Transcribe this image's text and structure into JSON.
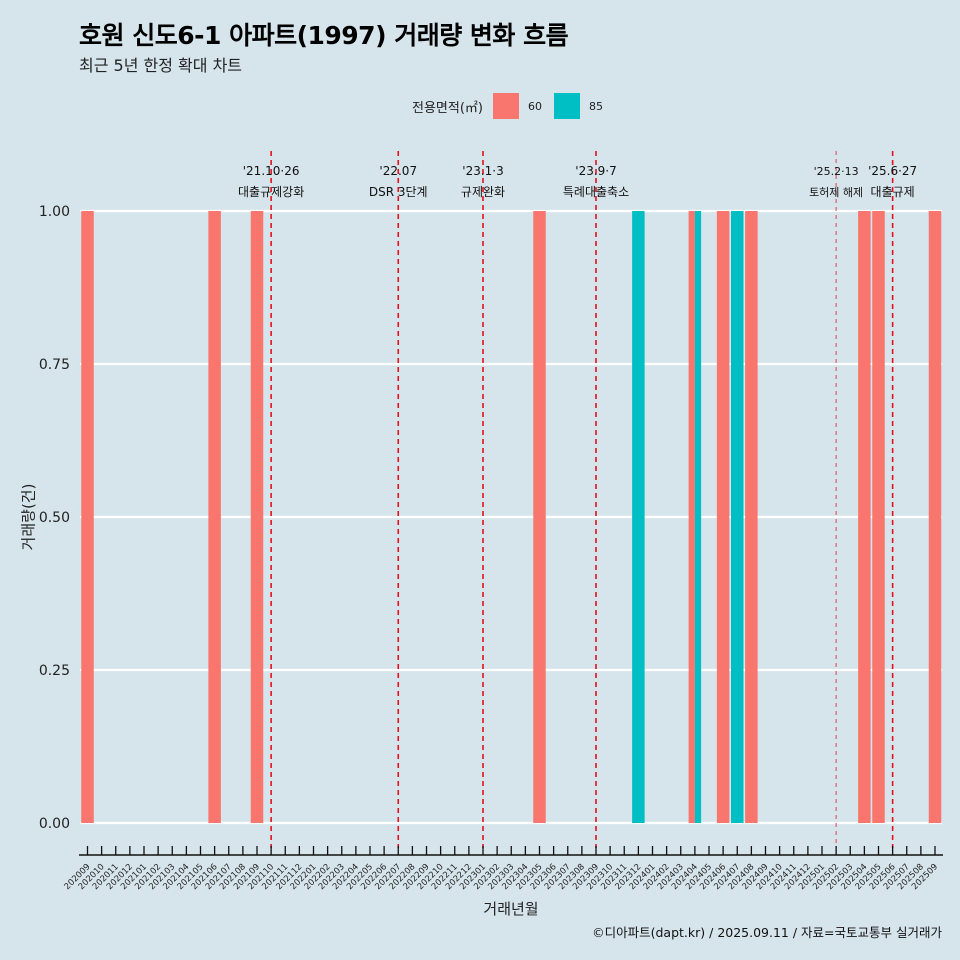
{
  "header": {
    "title": "호원 신도6-1 아파트(1997) 거래량 변화 흐름",
    "subtitle": "최근 5년 한정 확대 차트"
  },
  "legend": {
    "title": "전용면적(㎡)",
    "items": [
      {
        "label": "60",
        "color": "#F8766D"
      },
      {
        "label": "85",
        "color": "#00BFC4"
      }
    ]
  },
  "footer": {
    "credit": "©디아파트(dapt.kr) / 2025.09.11 / 자료=국토교통부 실거래가"
  },
  "chart_data": {
    "type": "bar",
    "title": "호원 신도6-1 아파트(1997) 거래량 변화 흐름",
    "subtitle": "최근 5년 한정 확대 차트",
    "xlabel": "거래년월",
    "ylabel": "거래량(건)",
    "ylim": [
      0,
      1
    ],
    "yticks": [
      "0.00",
      "0.25",
      "0.50",
      "0.75",
      "1.00"
    ],
    "grid": true,
    "legend_position": "top",
    "categories": [
      "202009",
      "202010",
      "202011",
      "202012",
      "202101",
      "202102",
      "202103",
      "202104",
      "202105",
      "202106",
      "202107",
      "202108",
      "202109",
      "202110",
      "202111",
      "202112",
      "202201",
      "202202",
      "202203",
      "202204",
      "202205",
      "202206",
      "202207",
      "202208",
      "202209",
      "202210",
      "202211",
      "202212",
      "202301",
      "202302",
      "202303",
      "202304",
      "202305",
      "202306",
      "202307",
      "202308",
      "202309",
      "202310",
      "202311",
      "202312",
      "202401",
      "202402",
      "202403",
      "202404",
      "202405",
      "202406",
      "202407",
      "202408",
      "202409",
      "202410",
      "202411",
      "202412",
      "202501",
      "202502",
      "202503",
      "202504",
      "202505",
      "202506",
      "202507",
      "202508",
      "202509"
    ],
    "series": [
      {
        "name": "60",
        "color": "#F8766D",
        "points": [
          {
            "x": "202009",
            "y": 1
          },
          {
            "x": "202106",
            "y": 1
          },
          {
            "x": "202109",
            "y": 1
          },
          {
            "x": "202305",
            "y": 1
          },
          {
            "x": "202404",
            "y": 1
          },
          {
            "x": "202406",
            "y": 1
          },
          {
            "x": "202408",
            "y": 1
          },
          {
            "x": "202504",
            "y": 1
          },
          {
            "x": "202505",
            "y": 1
          },
          {
            "x": "202509",
            "y": 1
          }
        ]
      },
      {
        "name": "85",
        "color": "#00BFC4",
        "points": [
          {
            "x": "202312",
            "y": 1
          },
          {
            "x": "202404",
            "y": 1
          },
          {
            "x": "202407",
            "y": 1
          }
        ]
      }
    ],
    "annotations": [
      {
        "x": "202110",
        "date": "'21.10·26",
        "label": "대출규제강화",
        "style": "major"
      },
      {
        "x": "202207",
        "date": "'22.07",
        "label": "DSR 3단계",
        "style": "major"
      },
      {
        "x": "202301",
        "date": "'23.1·3",
        "label": "규제완화",
        "style": "major"
      },
      {
        "x": "202309",
        "date": "'23.9·7",
        "label": "특례대출축소",
        "style": "major"
      },
      {
        "x": "202502",
        "date": "'25.2·13",
        "label": "토허제 해제",
        "style": "minor"
      },
      {
        "x": "202506",
        "date": "'25.6·27",
        "label": "대출규제",
        "style": "major"
      }
    ]
  }
}
